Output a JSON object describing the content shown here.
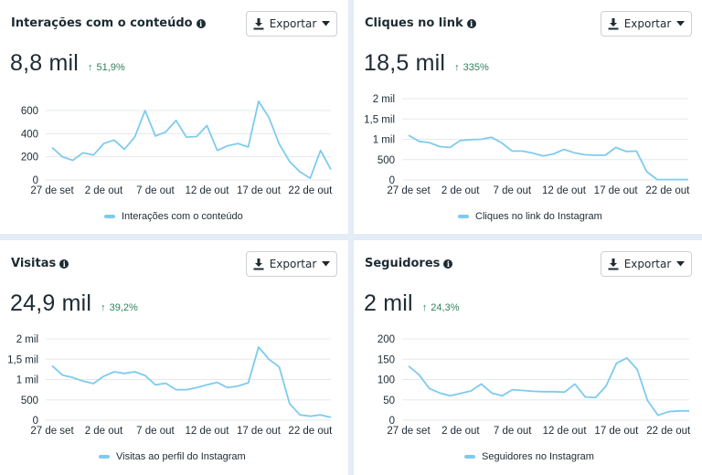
{
  "export_label": "Exportar",
  "x_ticks": [
    "27 de set",
    "2 de out",
    "7 de out",
    "12 de out",
    "17 de out",
    "22 de out"
  ],
  "cards": [
    {
      "title": "Interações com o conteúdo",
      "value": "8,8 mil",
      "change": "51,9%",
      "change_arrow": "↑",
      "legend": "Interações com o conteúdo",
      "y_ticks": [
        "0",
        "200",
        "400",
        "600"
      ]
    },
    {
      "title": "Cliques no link",
      "value": "18,5 mil",
      "change": "335%",
      "change_arrow": "↑",
      "legend": "Cliques no link do Instagram",
      "y_ticks": [
        "0",
        "500",
        "1 mil",
        "1,5 mil",
        "2 mil"
      ]
    },
    {
      "title": "Visitas",
      "value": "24,9 mil",
      "change": "39,2%",
      "change_arrow": "↑",
      "legend": "Visitas ao perfil do Instagram",
      "y_ticks": [
        "0",
        "500",
        "1 mil",
        "1,5 mil",
        "2 mil"
      ]
    },
    {
      "title": "Seguidores",
      "value": "2 mil",
      "change": "24,3%",
      "change_arrow": "↑",
      "legend": "Seguidores no Instagram",
      "y_ticks": [
        "0",
        "50",
        "100",
        "150",
        "200"
      ]
    }
  ],
  "colors": {
    "line": "#7ecbee",
    "positive_change": "#31825f",
    "grid": "#e6e8eb",
    "background": "#e4ecf6"
  },
  "chart_data": [
    {
      "type": "line",
      "title": "Interações com o conteúdo",
      "x": [
        "27 set",
        "28 set",
        "29 set",
        "30 set",
        "1 out",
        "2 out",
        "3 out",
        "4 out",
        "5 out",
        "6 out",
        "7 out",
        "8 out",
        "9 out",
        "10 out",
        "11 out",
        "12 out",
        "13 out",
        "14 out",
        "15 out",
        "16 out",
        "17 out",
        "18 out",
        "19 out",
        "20 out",
        "21 out",
        "22 out",
        "23 out",
        "24 out"
      ],
      "series": [
        {
          "name": "Interações com o conteúdo",
          "values": [
            280,
            200,
            170,
            235,
            215,
            315,
            345,
            265,
            370,
            600,
            380,
            415,
            515,
            370,
            375,
            470,
            255,
            295,
            315,
            285,
            680,
            540,
            310,
            160,
            70,
            15,
            255,
            90
          ]
        }
      ],
      "xlabel": "",
      "ylabel": "",
      "x_tick_labels": [
        "27 de set",
        "2 de out",
        "7 de out",
        "12 de out",
        "17 de out",
        "22 de out"
      ],
      "y_tick_labels": [
        "0",
        "200",
        "400",
        "600"
      ],
      "ylim": [
        0,
        700
      ],
      "grid": true,
      "legend_position": "bottom"
    },
    {
      "type": "line",
      "title": "Cliques no link",
      "x": [
        "27 set",
        "28 set",
        "29 set",
        "30 set",
        "1 out",
        "2 out",
        "3 out",
        "4 out",
        "5 out",
        "6 out",
        "7 out",
        "8 out",
        "9 out",
        "10 out",
        "11 out",
        "12 out",
        "13 out",
        "14 out",
        "15 out",
        "16 out",
        "17 out",
        "18 out",
        "19 out",
        "20 out",
        "21 out",
        "22 out",
        "23 out",
        "24 out"
      ],
      "series": [
        {
          "name": "Cliques no link do Instagram",
          "values": [
            1100,
            950,
            920,
            820,
            800,
            970,
            990,
            1000,
            1050,
            910,
            710,
            710,
            660,
            590,
            640,
            750,
            670,
            620,
            610,
            610,
            800,
            700,
            710,
            200,
            10,
            10,
            10,
            10
          ]
        }
      ],
      "xlabel": "",
      "ylabel": "",
      "x_tick_labels": [
        "27 de set",
        "2 de out",
        "7 de out",
        "12 de out",
        "17 de out",
        "22 de out"
      ],
      "y_tick_labels": [
        "0",
        "500",
        "1 mil",
        "1,5 mil",
        "2 mil"
      ],
      "ylim": [
        0,
        2000
      ],
      "grid": true,
      "legend_position": "bottom"
    },
    {
      "type": "line",
      "title": "Visitas",
      "x": [
        "27 set",
        "28 set",
        "29 set",
        "30 set",
        "1 out",
        "2 out",
        "3 out",
        "4 out",
        "5 out",
        "6 out",
        "7 out",
        "8 out",
        "9 out",
        "10 out",
        "11 out",
        "12 out",
        "13 out",
        "14 out",
        "15 out",
        "16 out",
        "17 out",
        "18 out",
        "19 out",
        "20 out",
        "21 out",
        "22 out",
        "23 out",
        "24 out"
      ],
      "series": [
        {
          "name": "Visitas ao perfil do Instagram",
          "values": [
            1340,
            1110,
            1050,
            960,
            900,
            1080,
            1190,
            1150,
            1190,
            1100,
            870,
            910,
            750,
            750,
            800,
            870,
            930,
            800,
            840,
            920,
            1800,
            1500,
            1310,
            410,
            130,
            100,
            130,
            70
          ]
        }
      ],
      "xlabel": "",
      "ylabel": "",
      "x_tick_labels": [
        "27 de set",
        "2 de out",
        "7 de out",
        "12 de out",
        "17 de out",
        "22 de out"
      ],
      "y_tick_labels": [
        "0",
        "500",
        "1 mil",
        "1,5 mil",
        "2 mil"
      ],
      "ylim": [
        0,
        2000
      ],
      "grid": true,
      "legend_position": "bottom"
    },
    {
      "type": "line",
      "title": "Seguidores",
      "x": [
        "27 set",
        "28 set",
        "29 set",
        "30 set",
        "1 out",
        "2 out",
        "3 out",
        "4 out",
        "5 out",
        "6 out",
        "7 out",
        "8 out",
        "9 out",
        "10 out",
        "11 out",
        "12 out",
        "13 out",
        "14 out",
        "15 out",
        "16 out",
        "17 out",
        "18 out",
        "19 out",
        "20 out",
        "21 out",
        "22 out",
        "23 out",
        "24 out"
      ],
      "series": [
        {
          "name": "Seguidores no Instagram",
          "values": [
            133,
            112,
            78,
            67,
            60,
            66,
            72,
            89,
            67,
            60,
            75,
            73,
            71,
            70,
            70,
            69,
            89,
            57,
            56,
            84,
            140,
            153,
            125,
            48,
            12,
            21,
            23,
            23
          ]
        }
      ],
      "xlabel": "",
      "ylabel": "",
      "x_tick_labels": [
        "27 de set",
        "2 de out",
        "7 de out",
        "12 de out",
        "17 de out",
        "22 de out"
      ],
      "y_tick_labels": [
        "0",
        "50",
        "100",
        "150",
        "200"
      ],
      "ylim": [
        0,
        200
      ],
      "grid": true,
      "legend_position": "bottom"
    }
  ]
}
